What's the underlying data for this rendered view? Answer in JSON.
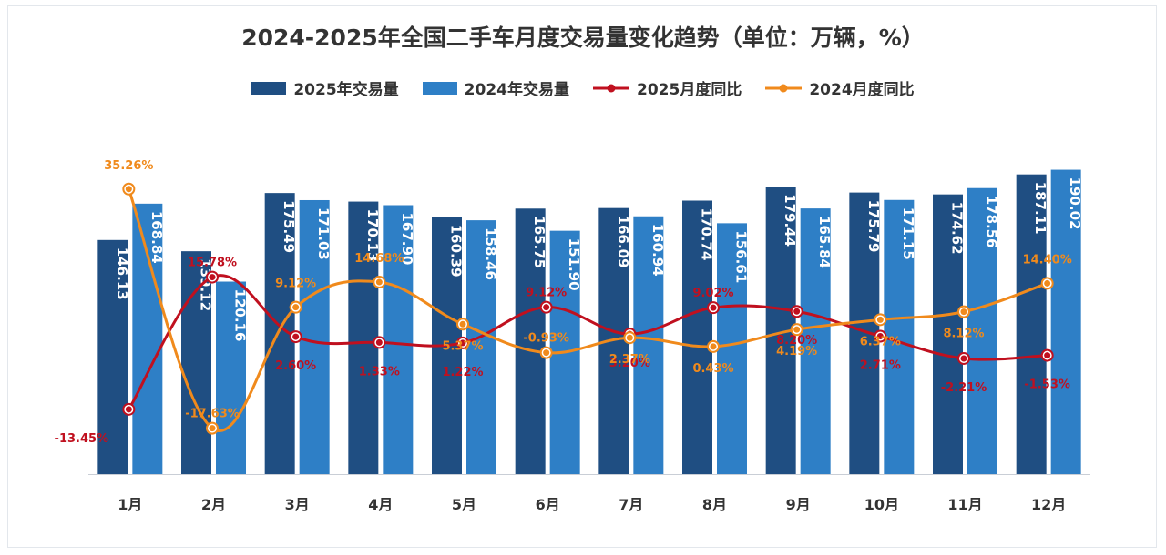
{
  "chart_data": {
    "type": "bar",
    "title": "2024-2025年全国二手车月度交易量变化趋势（单位：万辆，%）",
    "categories": [
      "1月",
      "2月",
      "3月",
      "4月",
      "5月",
      "6月",
      "7月",
      "8月",
      "9月",
      "10月",
      "11月",
      "12月"
    ],
    "series": [
      {
        "name": "2025年交易量",
        "kind": "bar",
        "color": "#1f4e82",
        "values": [
          146.13,
          139.12,
          175.49,
          170.13,
          160.39,
          165.75,
          166.09,
          170.74,
          179.44,
          175.79,
          174.62,
          187.11
        ]
      },
      {
        "name": "2024年交易量",
        "kind": "bar",
        "color": "#2e7fc6",
        "values": [
          168.84,
          120.16,
          171.03,
          167.9,
          158.46,
          151.9,
          160.94,
          156.61,
          165.84,
          171.15,
          178.56,
          190.02
        ]
      },
      {
        "name": "2025月度同比",
        "kind": "line",
        "color": "#c0101f",
        "values": [
          -13.45,
          15.78,
          2.6,
          1.33,
          1.22,
          9.12,
          3.2,
          9.02,
          8.2,
          2.71,
          -2.21,
          -1.53
        ],
        "labels": [
          "-13.45%",
          "15.78%",
          "2.60%",
          "1.33%",
          "1.22%",
          "9.12%",
          "3.20%",
          "9.02%",
          "8.20%",
          "2.71%",
          "-2.21%",
          "-1.53%"
        ]
      },
      {
        "name": "2024月度同比",
        "kind": "line",
        "color": "#f08a1c",
        "values": [
          35.26,
          -17.63,
          9.12,
          14.68,
          5.37,
          -0.93,
          2.37,
          0.43,
          4.19,
          6.37,
          8.12,
          14.4
        ],
        "labels": [
          "35.26%",
          "-17.63%",
          "9.12%",
          "14.68%",
          "5.37%",
          "-0.93%",
          "2.37%",
          "0.43%",
          "4.19%",
          "6.37%",
          "8.12%",
          "14.40%"
        ]
      }
    ],
    "ylim_bar": [
      0,
      200
    ],
    "ylim_pct": [
      -30,
      40
    ],
    "legend_position": "top-center"
  }
}
